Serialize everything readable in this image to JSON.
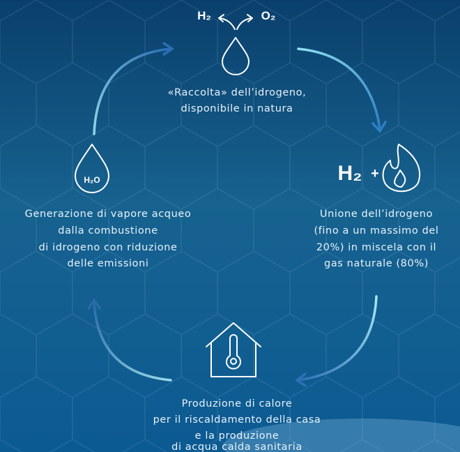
{
  "collection": {
    "icon": {
      "left": "H₂",
      "right": "O₂"
    },
    "text": [
      "«Raccolta» dell’idrogeno,",
      "disponibile in natura"
    ]
  },
  "blending": {
    "icon": {
      "label": "H₂",
      "plus": "+"
    },
    "text": [
      "Unione dell’idrogeno",
      "(fino a un massimo del",
      "20%) in miscela con il",
      "gas naturale (80%)"
    ]
  },
  "heating": {
    "text": [
      "Produzione di calore",
      "per il riscaldamento della casa",
      "e la produzione",
      "di acqua calda sanitaria"
    ]
  },
  "vapour": {
    "icon": {
      "label": "H₂O"
    },
    "text": [
      "Generazione di vapore acqueo",
      "dalla combustione",
      "di idrogeno con riduzione",
      "delle emissioni"
    ]
  }
}
